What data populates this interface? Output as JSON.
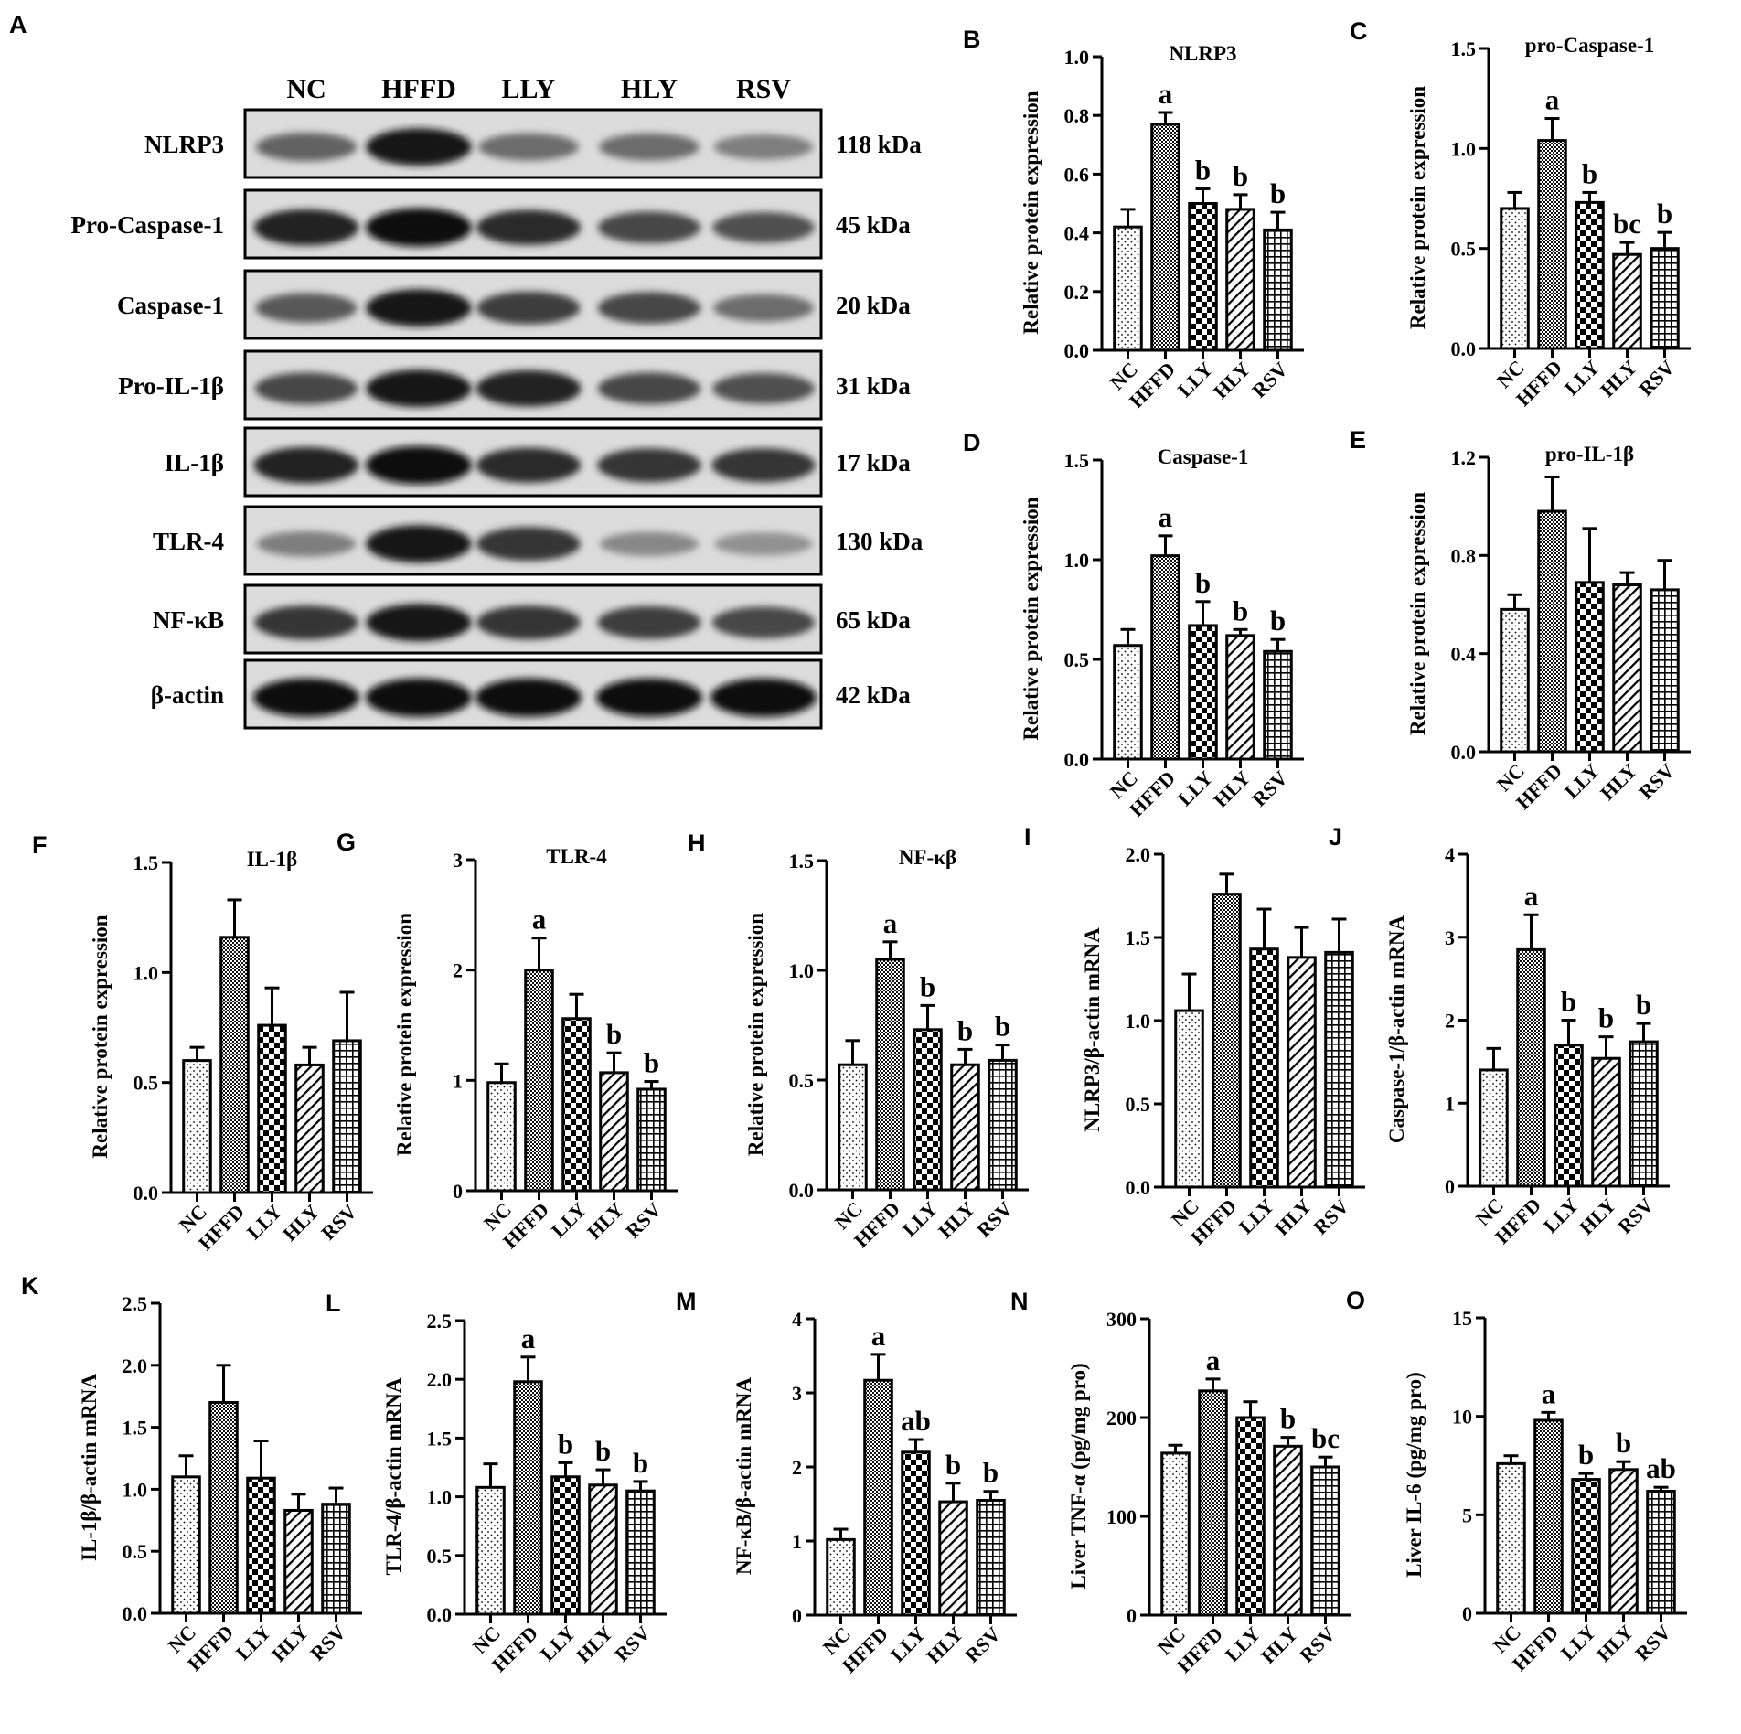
{
  "colors": {
    "ink": "#000000",
    "background": "#ffffff",
    "band": "#1a1a1a",
    "blot_bg": "#d9d9d9"
  },
  "western_blot": {
    "panel_label": "A",
    "lanes": [
      "NC",
      "HFFD",
      "LLY",
      "HLY",
      "RSV"
    ],
    "rows": [
      {
        "protein": "NLRP3",
        "size": "118 kDa",
        "intensity": [
          0.55,
          0.95,
          0.5,
          0.5,
          0.4
        ]
      },
      {
        "protein": "Pro-Caspase-1",
        "size": "45 kDa",
        "intensity": [
          0.9,
          1.0,
          0.85,
          0.7,
          0.65
        ]
      },
      {
        "protein": "Caspase-1",
        "size": "20 kDa",
        "intensity": [
          0.6,
          0.95,
          0.75,
          0.7,
          0.5
        ]
      },
      {
        "protein": "Pro-IL-1β",
        "size": "31 kDa",
        "intensity": [
          0.7,
          0.95,
          0.9,
          0.7,
          0.65
        ]
      },
      {
        "protein": "IL-1β",
        "size": "17 kDa",
        "intensity": [
          0.9,
          1.0,
          0.85,
          0.8,
          0.8
        ]
      },
      {
        "protein": "TLR-4",
        "size": "130 kDa",
        "intensity": [
          0.4,
          0.95,
          0.8,
          0.35,
          0.3
        ]
      },
      {
        "protein": "NF-κB",
        "size": "65 kDa",
        "intensity": [
          0.8,
          0.95,
          0.8,
          0.75,
          0.7
        ]
      },
      {
        "protein": "β-actin",
        "size": "42 kDa",
        "intensity": [
          1.0,
          1.0,
          1.0,
          1.0,
          1.0
        ]
      }
    ]
  },
  "chart_data": [
    {
      "panel": "B",
      "type": "bar",
      "title": "NLRP3",
      "ylabel": "Relative protein expression",
      "categories": [
        "NC",
        "HFFD",
        "LLY",
        "HLY",
        "RSV"
      ],
      "values": [
        0.42,
        0.77,
        0.5,
        0.48,
        0.41
      ],
      "errors": [
        0.06,
        0.04,
        0.05,
        0.05,
        0.06
      ],
      "sig": [
        "",
        "a",
        "b",
        "b",
        "b"
      ],
      "ylim": [
        0,
        1.0
      ],
      "yticks": [
        "0.0",
        "0.2",
        "0.4",
        "0.6",
        "0.8",
        "1.0"
      ]
    },
    {
      "panel": "C",
      "type": "bar",
      "title": "pro-Caspase-1",
      "ylabel": "Relative protein expression",
      "categories": [
        "NC",
        "HFFD",
        "LLY",
        "HLY",
        "RSV"
      ],
      "values": [
        0.7,
        1.04,
        0.73,
        0.47,
        0.5
      ],
      "errors": [
        0.08,
        0.11,
        0.05,
        0.06,
        0.08
      ],
      "sig": [
        "",
        "a",
        "b",
        "bc",
        "b"
      ],
      "ylim": [
        0,
        1.5
      ],
      "yticks": [
        "0.0",
        "0.5",
        "1.0",
        "1.5"
      ]
    },
    {
      "panel": "D",
      "type": "bar",
      "title": "Caspase-1",
      "ylabel": "Relative protein expression",
      "categories": [
        "NC",
        "HFFD",
        "LLY",
        "HLY",
        "RSV"
      ],
      "values": [
        0.57,
        1.02,
        0.67,
        0.62,
        0.54
      ],
      "errors": [
        0.08,
        0.1,
        0.12,
        0.03,
        0.06
      ],
      "sig": [
        "",
        "a",
        "b",
        "b",
        "b"
      ],
      "ylim": [
        0,
        1.5
      ],
      "yticks": [
        "0.0",
        "0.5",
        "1.0",
        "1.5"
      ]
    },
    {
      "panel": "E",
      "type": "bar",
      "title": "pro-IL-1β",
      "ylabel": "Relative protein expression",
      "categories": [
        "NC",
        "HFFD",
        "LLY",
        "HLY",
        "RSV"
      ],
      "values": [
        0.58,
        0.98,
        0.69,
        0.68,
        0.66
      ],
      "errors": [
        0.06,
        0.14,
        0.22,
        0.05,
        0.12
      ],
      "sig": [
        "",
        "",
        "",
        "",
        ""
      ],
      "ylim": [
        0,
        1.2
      ],
      "yticks": [
        "0.0",
        "0.4",
        "0.8",
        "1.2"
      ]
    },
    {
      "panel": "F",
      "type": "bar",
      "title": "IL-1β",
      "ylabel": "Relative protein expression",
      "categories": [
        "NC",
        "HFFD",
        "LLY",
        "HLY",
        "RSV"
      ],
      "values": [
        0.6,
        1.16,
        0.76,
        0.58,
        0.69
      ],
      "errors": [
        0.06,
        0.17,
        0.17,
        0.08,
        0.22
      ],
      "sig": [
        "",
        "",
        "",
        "",
        ""
      ],
      "ylim": [
        0,
        1.5
      ],
      "yticks": [
        "0.0",
        "0.5",
        "1.0",
        "1.5"
      ]
    },
    {
      "panel": "G",
      "type": "bar",
      "title": "TLR-4",
      "ylabel": "Relative protein expression",
      "categories": [
        "NC",
        "HFFD",
        "LLY",
        "HLY",
        "RSV"
      ],
      "values": [
        0.98,
        2.0,
        1.56,
        1.07,
        0.92
      ],
      "errors": [
        0.17,
        0.29,
        0.22,
        0.18,
        0.07
      ],
      "sig": [
        "",
        "a",
        "",
        "b",
        "b"
      ],
      "ylim": [
        0,
        3
      ],
      "yticks": [
        "0",
        "1",
        "2",
        "3"
      ]
    },
    {
      "panel": "H",
      "type": "bar",
      "title": "NF-κβ",
      "ylabel": "Relative protein expression",
      "categories": [
        "NC",
        "HFFD",
        "LLY",
        "HLY",
        "RSV"
      ],
      "values": [
        0.57,
        1.05,
        0.73,
        0.57,
        0.59
      ],
      "errors": [
        0.11,
        0.08,
        0.11,
        0.07,
        0.07
      ],
      "sig": [
        "",
        "a",
        "b",
        "b",
        "b"
      ],
      "ylim": [
        0,
        1.5
      ],
      "yticks": [
        "0.0",
        "0.5",
        "1.0",
        "1.5"
      ]
    },
    {
      "panel": "I",
      "type": "bar",
      "title": "",
      "ylabel": "NLRP3/β-actin mRNA",
      "categories": [
        "NC",
        "HFFD",
        "LLY",
        "HLY",
        "RSV"
      ],
      "values": [
        1.06,
        1.76,
        1.43,
        1.38,
        1.41
      ],
      "errors": [
        0.22,
        0.12,
        0.24,
        0.18,
        0.2
      ],
      "sig": [
        "",
        "",
        "",
        "",
        ""
      ],
      "ylim": [
        0,
        2.0
      ],
      "yticks": [
        "0.0",
        "0.5",
        "1.0",
        "1.5",
        "2.0"
      ]
    },
    {
      "panel": "J",
      "type": "bar",
      "title": "",
      "ylabel": "Caspase-1/β-actin mRNA",
      "categories": [
        "NC",
        "HFFD",
        "LLY",
        "HLY",
        "RSV"
      ],
      "values": [
        1.4,
        2.85,
        1.7,
        1.54,
        1.74
      ],
      "errors": [
        0.26,
        0.42,
        0.3,
        0.26,
        0.22
      ],
      "sig": [
        "",
        "a",
        "b",
        "b",
        "b"
      ],
      "ylim": [
        0,
        4
      ],
      "yticks": [
        "0",
        "1",
        "2",
        "3",
        "4"
      ]
    },
    {
      "panel": "K",
      "type": "bar",
      "title": "",
      "ylabel": "IL-1β/β-actin mRNA",
      "categories": [
        "NC",
        "HFFD",
        "LLY",
        "HLY",
        "RSV"
      ],
      "values": [
        1.1,
        1.7,
        1.09,
        0.83,
        0.88
      ],
      "errors": [
        0.17,
        0.3,
        0.3,
        0.13,
        0.13
      ],
      "sig": [
        "",
        "",
        "",
        "",
        ""
      ],
      "ylim": [
        0,
        2.5
      ],
      "yticks": [
        "0.0",
        "0.5",
        "1.0",
        "1.5",
        "2.0",
        "2.5"
      ]
    },
    {
      "panel": "L",
      "type": "bar",
      "title": "",
      "ylabel": "TLR-4/β-actin mRNA",
      "categories": [
        "NC",
        "HFFD",
        "LLY",
        "HLY",
        "RSV"
      ],
      "values": [
        1.08,
        1.98,
        1.17,
        1.1,
        1.05
      ],
      "errors": [
        0.2,
        0.21,
        0.12,
        0.13,
        0.08
      ],
      "sig": [
        "",
        "a",
        "b",
        "b",
        "b"
      ],
      "ylim": [
        0,
        2.5
      ],
      "yticks": [
        "0.0",
        "0.5",
        "1.0",
        "1.5",
        "2.0",
        "2.5"
      ]
    },
    {
      "panel": "M",
      "type": "bar",
      "title": "",
      "ylabel": "NF-κB/β-actin mRNA",
      "categories": [
        "NC",
        "HFFD",
        "LLY",
        "HLY",
        "RSV"
      ],
      "values": [
        1.02,
        3.17,
        2.2,
        1.53,
        1.55
      ],
      "errors": [
        0.14,
        0.35,
        0.17,
        0.25,
        0.12
      ],
      "sig": [
        "",
        "a",
        "ab",
        "b",
        "b"
      ],
      "ylim": [
        0,
        4
      ],
      "yticks": [
        "0",
        "1",
        "2",
        "3",
        "4"
      ]
    },
    {
      "panel": "N",
      "type": "bar",
      "title": "",
      "ylabel": "Liver TNF-α (pg/mg pro)",
      "categories": [
        "NC",
        "HFFD",
        "LLY",
        "HLY",
        "RSV"
      ],
      "values": [
        164,
        227,
        200,
        171,
        150
      ],
      "errors": [
        8,
        12,
        16,
        9,
        10
      ],
      "sig": [
        "",
        "a",
        "",
        "b",
        "bc"
      ],
      "ylim": [
        0,
        300
      ],
      "yticks": [
        "0",
        "100",
        "200",
        "300"
      ]
    },
    {
      "panel": "O",
      "type": "bar",
      "title": "",
      "ylabel": "Liver IL-6 (pg/mg pro)",
      "categories": [
        "NC",
        "HFFD",
        "LLY",
        "HLY",
        "RSV"
      ],
      "values": [
        7.6,
        9.8,
        6.8,
        7.3,
        6.2
      ],
      "errors": [
        0.4,
        0.4,
        0.3,
        0.4,
        0.2
      ],
      "sig": [
        "",
        "a",
        "b",
        "b",
        "ab"
      ],
      "ylim": [
        0,
        15
      ],
      "yticks": [
        "0",
        "5",
        "10",
        "15"
      ]
    }
  ]
}
